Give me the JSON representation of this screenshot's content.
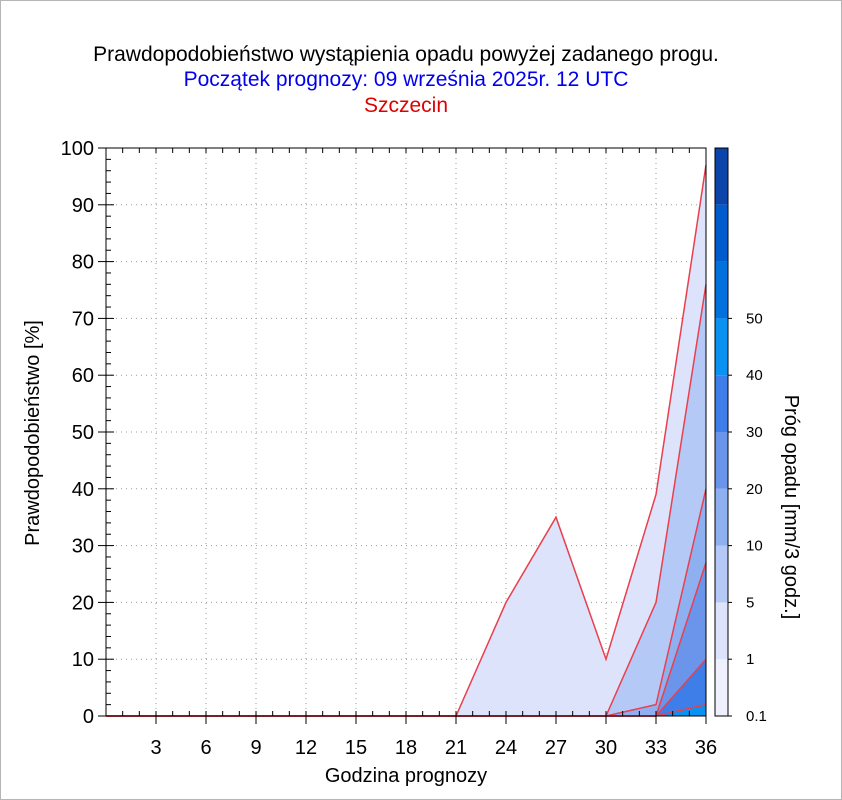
{
  "header": {
    "title": "Prawdopodobieństwo wystąpienia opadu powyżej zadanego progu.",
    "subtitle": "Początek prognozy: 09 września 2025r. 12 UTC",
    "location": "Szczecin"
  },
  "chart_data": {
    "type": "area",
    "title": "Prawdopodobieństwo wystąpienia opadu powyżej zadanego progu.",
    "subtitle": "Początek prognozy: 09 września 2025r. 12 UTC",
    "location": "Szczecin",
    "xlabel": "Godzina prognozy",
    "ylabel": "Prawdopodobieństwo [%]",
    "colorbar_label": "Próg opadu [mm/3 godz.]",
    "xlim": [
      0,
      36
    ],
    "ylim": [
      0,
      100
    ],
    "x_ticks": [
      3,
      6,
      9,
      12,
      15,
      18,
      21,
      24,
      27,
      30,
      33,
      36
    ],
    "y_ticks": [
      0,
      10,
      20,
      30,
      40,
      50,
      60,
      70,
      80,
      90,
      100
    ],
    "grid": true,
    "x": [
      0,
      3,
      6,
      9,
      12,
      15,
      18,
      21,
      24,
      27,
      30,
      33,
      36
    ],
    "series": [
      {
        "threshold": "0.1",
        "color": "#dde3fa",
        "values": [
          0,
          0,
          0,
          0,
          0,
          0,
          0,
          0,
          20,
          35,
          10,
          39,
          97
        ]
      },
      {
        "threshold": "1",
        "color": "#b5c9f6",
        "values": [
          0,
          0,
          0,
          0,
          0,
          0,
          0,
          0,
          0,
          0,
          0,
          20,
          76
        ]
      },
      {
        "threshold": "5",
        "color": "#8fb0f0",
        "values": [
          0,
          0,
          0,
          0,
          0,
          0,
          0,
          0,
          0,
          0,
          0,
          2,
          40
        ]
      },
      {
        "threshold": "10",
        "color": "#6a95ea",
        "values": [
          0,
          0,
          0,
          0,
          0,
          0,
          0,
          0,
          0,
          0,
          0,
          0,
          27
        ]
      },
      {
        "threshold": "20",
        "color": "#3d7ee8",
        "values": [
          0,
          0,
          0,
          0,
          0,
          0,
          0,
          0,
          0,
          0,
          0,
          0,
          10
        ]
      },
      {
        "threshold": "30",
        "color": "#0a92f2",
        "values": [
          0,
          0,
          0,
          0,
          0,
          0,
          0,
          0,
          0,
          0,
          0,
          0,
          2
        ]
      }
    ],
    "colorbar": {
      "labels": [
        "0.1",
        "1",
        "5",
        "10",
        "20",
        "30",
        "40",
        "50"
      ],
      "colors": [
        "#eef1fd",
        "#dde3fa",
        "#b5c9f6",
        "#8fb0f0",
        "#6a95ea",
        "#3d7ee8",
        "#0a92f2",
        "#0071dd",
        "#005ccc",
        "#0b45aa"
      ]
    },
    "line_color": "#e8404f"
  }
}
